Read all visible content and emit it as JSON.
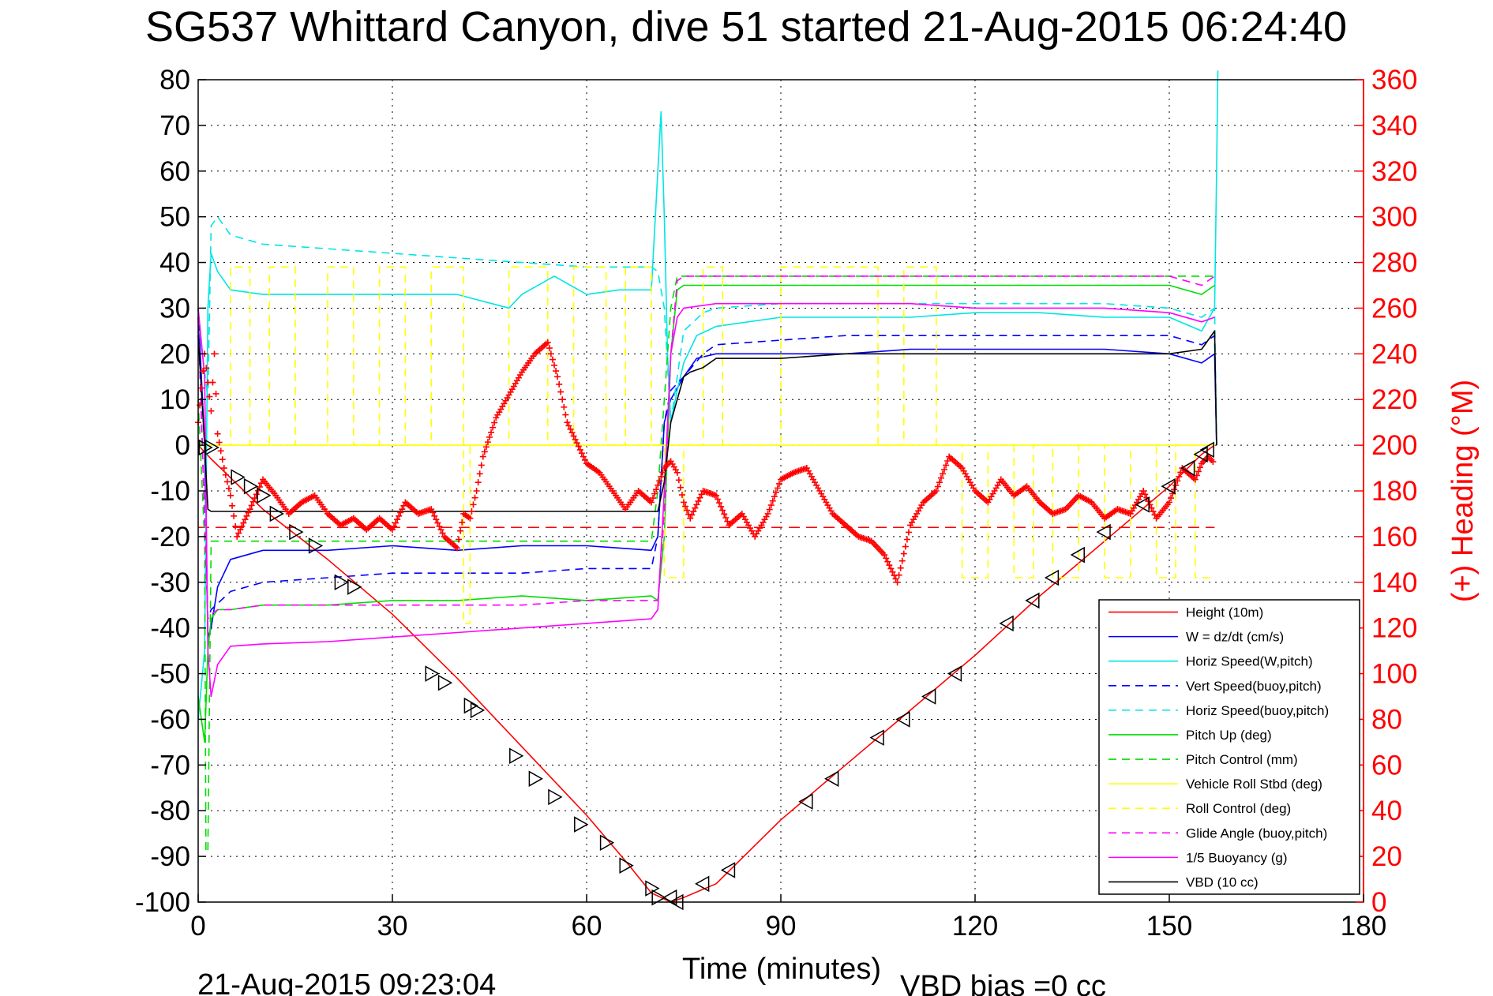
{
  "chart_data": {
    "type": "line",
    "title": "SG537 Whittard Canyon, dive 51 started 21-Aug-2015 06:24:40",
    "xlabel": "Time (minutes)",
    "ylabel_right": "(+) Heading (°M)",
    "footer_left": "21-Aug-2015 09:23:04",
    "footer_right": "VBD bias =0 cc",
    "xlim": [
      0,
      180
    ],
    "ylim": [
      -100,
      80
    ],
    "ylim_right": [
      0,
      360
    ],
    "xticks": [
      "0",
      "30",
      "60",
      "90",
      "120",
      "150",
      "180"
    ],
    "yticks": [
      "80",
      "70",
      "60",
      "50",
      "40",
      "30",
      "20",
      "10",
      "0",
      "-10",
      "-20",
      "-30",
      "-40",
      "-50",
      "-60",
      "-70",
      "-80",
      "-90",
      "-100"
    ],
    "yticks_right": [
      "360",
      "340",
      "320",
      "300",
      "280",
      "260",
      "240",
      "220",
      "200",
      "180",
      "160",
      "140",
      "120",
      "100",
      "80",
      "60",
      "40",
      "20",
      "0"
    ],
    "grid": true,
    "legend_position": "bottom-right",
    "colors": {
      "red": "#ff0000",
      "blue": "#0000ff",
      "cyan": "#00e5e5",
      "green": "#00dd00",
      "yellow": "#ffff00",
      "magenta": "#ff00ff",
      "black": "#000000"
    },
    "series": [
      {
        "name": "Height (10m)",
        "color": "#ff0000",
        "dash": false,
        "x": [
          0,
          2,
          10,
          20,
          30,
          40,
          50,
          60,
          66,
          70,
          73,
          75,
          80,
          90,
          100,
          110,
          120,
          130,
          140,
          150,
          155,
          157
        ],
        "y": [
          0,
          -3,
          -14,
          -25,
          -37,
          -51,
          -66,
          -81,
          -91,
          -98,
          -100,
          -99,
          -96,
          -82,
          -70,
          -58,
          -46,
          -33,
          -21,
          -9,
          -2,
          0
        ]
      },
      {
        "name": "W = dz/dt (cm/s)",
        "color": "#0000ff",
        "dash": false,
        "x": [
          0,
          1,
          1.5,
          2,
          3,
          5,
          10,
          20,
          30,
          40,
          50,
          60,
          70,
          71,
          72,
          73,
          75,
          77,
          80,
          90,
          100,
          110,
          120,
          130,
          140,
          150,
          155,
          157,
          157.3
        ],
        "y": [
          30,
          0,
          -42,
          -40,
          -31,
          -25,
          -23,
          -23,
          -22,
          -23,
          -22,
          -22,
          -23,
          -20,
          5,
          10,
          15,
          19,
          20,
          20,
          20,
          21,
          21,
          21,
          21,
          20,
          18,
          20,
          0
        ]
      },
      {
        "name": "Horiz Speed(W,pitch)",
        "color": "#00e5e5",
        "dash": false,
        "x": [
          0,
          1,
          1.5,
          2,
          3,
          5,
          10,
          20,
          30,
          40,
          48,
          50,
          55,
          60,
          65,
          70,
          71,
          71.5,
          72,
          72.5,
          73,
          74,
          75,
          77,
          80,
          90,
          100,
          110,
          120,
          130,
          140,
          150,
          155,
          157,
          157.3,
          157.5
        ],
        "y": [
          -60,
          -45,
          30,
          42,
          38,
          34,
          33,
          33,
          33,
          33,
          30,
          33,
          37,
          33,
          34,
          34,
          60,
          73,
          50,
          20,
          5,
          12,
          18,
          24,
          26,
          28,
          28,
          28,
          29,
          29,
          28,
          28,
          25,
          30,
          60,
          82
        ]
      },
      {
        "name": "Vert Speed(buoy,pitch)",
        "color": "#0000ff",
        "dash": true,
        "x": [
          0,
          1.5,
          2,
          5,
          10,
          20,
          30,
          40,
          50,
          60,
          70,
          71,
          72,
          73,
          75,
          78,
          80,
          90,
          100,
          110,
          120,
          130,
          140,
          150,
          155,
          157,
          157.3
        ],
        "y": [
          28,
          -38,
          -36,
          -32,
          -30,
          -29,
          -28,
          -28,
          -28,
          -27,
          -27,
          -20,
          5,
          12,
          15,
          20,
          22,
          23,
          24,
          24,
          24,
          24,
          24,
          24,
          22,
          24,
          0
        ]
      },
      {
        "name": "Horiz Speed(buoy,pitch)",
        "color": "#00e5e5",
        "dash": true,
        "x": [
          0,
          1.5,
          2,
          3,
          5,
          10,
          20,
          30,
          40,
          50,
          60,
          70,
          71,
          72,
          73,
          75,
          78,
          80,
          90,
          100,
          110,
          120,
          130,
          140,
          150,
          155,
          157,
          157.3
        ],
        "y": [
          28,
          10,
          48,
          50,
          46,
          44,
          43,
          42,
          41,
          40,
          39,
          39,
          38,
          30,
          5,
          25,
          29,
          30,
          31,
          31,
          31,
          31,
          31,
          31,
          30,
          28,
          30,
          0
        ]
      },
      {
        "name": "Pitch Up (deg)",
        "color": "#00dd00",
        "dash": false,
        "x": [
          0,
          1,
          1.5,
          2,
          3,
          5,
          10,
          20,
          30,
          40,
          50,
          60,
          70,
          71,
          72,
          73,
          74,
          75,
          80,
          90,
          100,
          110,
          120,
          130,
          140,
          150,
          155,
          157
        ],
        "y": [
          -55,
          -65,
          -45,
          -38,
          -36,
          -36,
          -35,
          -35,
          -34,
          -34,
          -33,
          -34,
          -33,
          -34,
          -20,
          20,
          34,
          35,
          35,
          35,
          35,
          35,
          35,
          35,
          35,
          35,
          33,
          35
        ]
      },
      {
        "name": "Pitch Control (mm)",
        "color": "#00dd00",
        "dash": true,
        "x": [
          0,
          1,
          1.2,
          1.5,
          2,
          3,
          5,
          10,
          20,
          30,
          40,
          50,
          60,
          70,
          71,
          72,
          73,
          74,
          80,
          90,
          100,
          110,
          120,
          130,
          140,
          150,
          155,
          157
        ],
        "y": [
          10,
          -21,
          -89,
          -89,
          -21,
          -21,
          -21,
          -21,
          -21,
          -21,
          -21,
          -21,
          -21,
          -21,
          -10,
          10,
          30,
          37,
          37,
          37,
          37,
          37,
          37,
          37,
          37,
          37,
          37,
          37
        ]
      },
      {
        "name": "Vehicle Roll Stbd (deg)",
        "color": "#ffff00",
        "dash": false,
        "x": [
          0,
          60,
          157
        ],
        "y": [
          0,
          0,
          0
        ]
      },
      {
        "name": "Roll Control (deg)",
        "color": "#ffff00",
        "dash": true,
        "x": [
          0,
          5,
          5,
          8,
          8,
          11,
          11,
          15,
          15,
          20,
          20,
          24,
          24,
          28,
          28,
          32,
          32,
          36,
          36,
          41,
          41,
          42,
          42,
          48,
          48,
          54,
          54,
          58,
          58,
          63,
          63,
          66,
          66,
          70,
          70,
          72,
          72,
          75,
          75,
          78,
          78,
          81,
          81,
          90,
          90,
          105,
          105,
          109,
          109,
          114,
          114,
          118,
          118,
          122,
          122,
          126,
          126,
          129,
          129,
          132,
          132,
          136,
          136,
          140,
          140,
          144,
          144,
          148,
          148,
          151,
          151,
          154,
          154,
          157
        ],
        "y": [
          0,
          0,
          39,
          39,
          0,
          0,
          39,
          39,
          0,
          0,
          39,
          39,
          0,
          0,
          39,
          39,
          0,
          0,
          39,
          39,
          -39,
          -39,
          0,
          0,
          39,
          39,
          0,
          0,
          39,
          39,
          0,
          0,
          39,
          39,
          0,
          0,
          -29,
          -29,
          0,
          0,
          39,
          39,
          0,
          0,
          39,
          39,
          0,
          0,
          39,
          39,
          0,
          0,
          -29,
          -29,
          0,
          0,
          -29,
          -29,
          0,
          0,
          -29,
          -29,
          0,
          0,
          -29,
          -29,
          0,
          0,
          -29,
          -29,
          0,
          0,
          -29,
          -29
        ]
      },
      {
        "name": "Glide Angle (buoy,pitch)",
        "color": "#ff00ff",
        "dash": true,
        "x": [
          0,
          1.5,
          2,
          3,
          5,
          10,
          20,
          30,
          40,
          50,
          60,
          70,
          71,
          72,
          73,
          74,
          75,
          80,
          90,
          100,
          110,
          120,
          130,
          140,
          150,
          155,
          157
        ],
        "y": [
          28,
          -38,
          -37,
          -36,
          -36,
          -35,
          -35,
          -35,
          -35,
          -35,
          -34,
          -34,
          -34,
          -15,
          20,
          36,
          37,
          37,
          37,
          37,
          37,
          37,
          37,
          37,
          37,
          35,
          37
        ]
      },
      {
        "name": "1/5 Buoyancy (g)",
        "color": "#ff00ff",
        "dash": false,
        "x": [
          0,
          1,
          1.5,
          2,
          3,
          5,
          10,
          20,
          30,
          40,
          50,
          60,
          70,
          71,
          72,
          73,
          74,
          75,
          80,
          90,
          100,
          110,
          120,
          130,
          140,
          150,
          155,
          157
        ],
        "y": [
          30,
          15,
          -45,
          -55,
          -48,
          -44,
          -43.5,
          -43,
          -42,
          -41,
          -40,
          -39,
          -38,
          -36,
          -10,
          20,
          28,
          30,
          31,
          31,
          31,
          31,
          30,
          30,
          30,
          29,
          27,
          28
        ]
      },
      {
        "name": "VBD (10 cc)",
        "color": "#000000",
        "dash": false,
        "x": [
          0,
          1,
          1.5,
          2,
          70,
          71,
          72,
          73,
          74,
          75,
          76,
          78,
          80,
          90,
          100,
          110,
          120,
          130,
          140,
          150,
          155,
          157,
          157.3
        ],
        "y": [
          24,
          0,
          -14,
          -14.5,
          -14.5,
          -14.5,
          -8,
          5,
          10,
          15,
          16,
          17,
          19,
          19,
          20,
          20,
          20,
          20,
          20,
          20,
          21,
          25,
          0
        ]
      }
    ],
    "heading_series": {
      "name": "Heading",
      "axis": "right",
      "color": "#ff0000",
      "marker": "+",
      "x": [
        0,
        1,
        2,
        2.5,
        3,
        4,
        5,
        6,
        8,
        10,
        12,
        14,
        16,
        18,
        20,
        22,
        24,
        26,
        28,
        30,
        32,
        34,
        36,
        38,
        40,
        41,
        42,
        43,
        44,
        46,
        48,
        50,
        52,
        54,
        55.5,
        57,
        60,
        62,
        64,
        66,
        68,
        70,
        72,
        73,
        74,
        75,
        76,
        78,
        80,
        82,
        84,
        86,
        88,
        90,
        92,
        94,
        96,
        98,
        100,
        102,
        104,
        106,
        108,
        110,
        112,
        114,
        116,
        118,
        120,
        122,
        124,
        126,
        128,
        130,
        132,
        134,
        136,
        138,
        140,
        142,
        144,
        146,
        148,
        150,
        152,
        154,
        155,
        156,
        157
      ],
      "y": [
        210,
        240,
        215,
        240,
        205,
        190,
        178,
        160,
        172,
        185,
        178,
        170,
        175,
        178,
        170,
        165,
        168,
        163,
        168,
        163,
        175,
        170,
        172,
        160,
        155,
        170,
        168,
        180,
        195,
        212,
        222,
        232,
        240,
        245,
        230,
        210,
        192,
        188,
        180,
        172,
        180,
        175,
        190,
        193,
        188,
        175,
        168,
        180,
        178,
        165,
        170,
        160,
        170,
        185,
        188,
        190,
        180,
        170,
        165,
        160,
        158,
        152,
        140,
        165,
        175,
        180,
        195,
        190,
        180,
        175,
        185,
        178,
        182,
        175,
        170,
        172,
        178,
        175,
        168,
        172,
        170,
        180,
        168,
        175,
        190,
        185,
        192,
        195,
        192
      ]
    },
    "dive_markers": {
      "marker": "triangle",
      "color": "#000000",
      "x": [
        1,
        2,
        6,
        8,
        10,
        12,
        15,
        18,
        22,
        24,
        36,
        38,
        42,
        43,
        49,
        52,
        55,
        59,
        63,
        66,
        70,
        71,
        73,
        74,
        78,
        82,
        94,
        98,
        105,
        109,
        113,
        117,
        125,
        129,
        132,
        136,
        140,
        146,
        150,
        153,
        155,
        156
      ],
      "y": [
        -0.5,
        -0.5,
        -7,
        -9,
        -11,
        -15,
        -19,
        -22,
        -30,
        -31,
        -50,
        -52,
        -57,
        -58,
        -68,
        -73,
        -77,
        -83,
        -87,
        -92,
        -97,
        -99,
        -99,
        -100,
        -96,
        -93,
        -78,
        -73,
        -64,
        -60,
        -55,
        -50,
        -39,
        -34,
        -29,
        -24,
        -19,
        -13,
        -9,
        -5,
        -2,
        -1
      ]
    },
    "reference_line": {
      "color": "#ff0000",
      "dash": true,
      "axis": "right",
      "y": 164
    }
  }
}
